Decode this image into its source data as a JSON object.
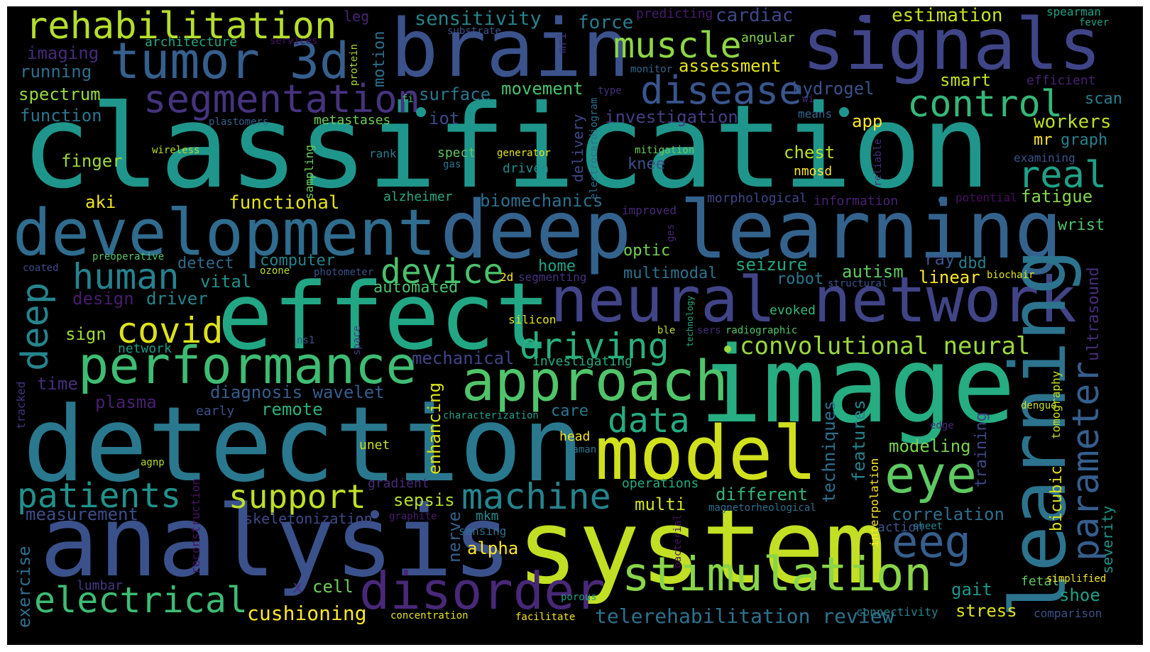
{
  "words": [
    {
      "t": "classification",
      "c": "#1f968b"
    },
    {
      "t": "detection",
      "c": "#2a788e"
    },
    {
      "t": "system",
      "c": "#c2df23"
    },
    {
      "t": "analysis",
      "c": "#3b518b"
    },
    {
      "t": "image",
      "c": "#26ad81"
    },
    {
      "t": "effect",
      "c": "#22a785"
    },
    {
      "t": "deep learning",
      "c": "#33638d"
    },
    {
      "t": "development",
      "c": "#2f6c8e"
    },
    {
      "t": "brain",
      "c": "#3b528b"
    },
    {
      "t": "signals",
      "c": "#404588"
    },
    {
      "t": "neural network",
      "c": "#414487"
    },
    {
      "t": "model",
      "c": "#d0e11c"
    },
    {
      "t": "performance",
      "c": "#3fbc73"
    },
    {
      "t": "approach",
      "c": "#50c46a"
    },
    {
      "t": "stimulation",
      "c": "#89d548"
    },
    {
      "t": "disorder",
      "c": "#482878"
    },
    {
      "t": "learning",
      "c": "#2c738e"
    },
    {
      "t": "tumor 3d",
      "c": "#355f8d"
    },
    {
      "t": "rehabilitation",
      "c": "#b5de2b"
    },
    {
      "t": "segmentation",
      "c": "#46337e"
    },
    {
      "t": "muscle",
      "c": "#8ed645"
    },
    {
      "t": "disease",
      "c": "#39558c"
    },
    {
      "t": "control",
      "c": "#35b779"
    },
    {
      "t": "real",
      "c": "#1fa088"
    },
    {
      "t": "human",
      "c": "#26828e"
    },
    {
      "t": "covid",
      "c": "#dde318"
    },
    {
      "t": "device",
      "c": "#4ac16d"
    },
    {
      "t": "driving",
      "c": "#29af7f"
    },
    {
      "t": "data",
      "c": "#25ab82"
    },
    {
      "t": "eye",
      "c": "#5ec962"
    },
    {
      "t": "eeg",
      "c": "#355e8d"
    },
    {
      "t": "machine",
      "c": "#25848e"
    },
    {
      "t": "support",
      "c": "#bddf26"
    },
    {
      "t": "patients",
      "c": "#21918c"
    },
    {
      "t": "electrical",
      "c": "#3dbc74"
    },
    {
      "t": "deep",
      "c": "#25858e"
    },
    {
      "t": "parameter",
      "c": "#355e8d"
    },
    {
      "t": "convolutional neural",
      "c": "#9bd93c"
    },
    {
      "t": "cushioning",
      "c": "#fde725"
    },
    {
      "t": "telerehabilitation review",
      "c": "#2c728e"
    },
    {
      "t": "sensitivity",
      "c": "#25848e"
    },
    {
      "t": "force",
      "c": "#287c8e"
    },
    {
      "t": "cardiac",
      "c": "#3f4788"
    },
    {
      "t": "estimation",
      "c": "#c8e020"
    },
    {
      "t": "spearman",
      "c": "#1fa187"
    },
    {
      "t": "fever",
      "c": "#1f9e89"
    },
    {
      "t": "leg",
      "c": "#482576"
    },
    {
      "t": "predicting",
      "c": "#481b6d"
    },
    {
      "t": "angular",
      "c": "#84d44b"
    },
    {
      "t": "architecture",
      "c": "#22a785"
    },
    {
      "t": "services",
      "c": "#471164"
    },
    {
      "t": "substrate",
      "c": "#3b528b"
    },
    {
      "t": "imaging",
      "c": "#472a7a"
    },
    {
      "t": "running",
      "c": "#2d708e"
    },
    {
      "t": "spectrum",
      "c": "#98d83e"
    },
    {
      "t": "function",
      "c": "#2a768e"
    },
    {
      "t": "protein",
      "c": "#a8db34"
    },
    {
      "t": "motion",
      "c": "#2c718e"
    },
    {
      "t": "mri",
      "c": "#453882"
    },
    {
      "t": "monitor",
      "c": "#31668e"
    },
    {
      "t": "assessment",
      "c": "#e5e419"
    },
    {
      "t": "smart",
      "c": "#c2df23"
    },
    {
      "t": "efficient",
      "c": "#482071"
    },
    {
      "t": "scan",
      "c": "#287d8e"
    },
    {
      "t": "movement",
      "c": "#48c16e"
    },
    {
      "t": "surface",
      "c": "#2a788e"
    },
    {
      "t": "hydrogel",
      "c": "#3b528b"
    },
    {
      "t": "type",
      "c": "#46327e"
    },
    {
      "t": "fi",
      "c": "#3dbc74"
    },
    {
      "t": "plastomers",
      "c": "#34618d"
    },
    {
      "t": "metastases",
      "c": "#6ece58"
    },
    {
      "t": "iot",
      "c": "#3e4989"
    },
    {
      "t": "investigation",
      "c": "#433e85"
    },
    {
      "t": "wi",
      "c": "#472c7a"
    },
    {
      "t": "means",
      "c": "#31688e"
    },
    {
      "t": "app",
      "c": "#fde725"
    },
    {
      "t": "workers",
      "c": "#bddf26"
    },
    {
      "t": "mr",
      "c": "#fde725"
    },
    {
      "t": "graph",
      "c": "#26828e"
    },
    {
      "t": "examining",
      "c": "#3a538b"
    },
    {
      "t": "finger",
      "c": "#9bd93c"
    },
    {
      "t": "wireless",
      "c": "#b5de2b"
    },
    {
      "t": "sampling",
      "c": "#6ece58"
    },
    {
      "t": "rank",
      "c": "#287c8e"
    },
    {
      "t": "spect",
      "c": "#5ec962"
    },
    {
      "t": "gas",
      "c": "#2c728e"
    },
    {
      "t": "generator",
      "c": "#e5e419"
    },
    {
      "t": "driven",
      "c": "#228c8d"
    },
    {
      "t": "delivery",
      "c": "#3f4889"
    },
    {
      "t": "electrocardiogram",
      "c": "#2e6f8e"
    },
    {
      "t": "mitigation",
      "c": "#6ccd5a"
    },
    {
      "t": "knee",
      "c": "#3b528b"
    },
    {
      "t": "chest",
      "c": "#bade28"
    },
    {
      "t": "nmosd",
      "c": "#fde725"
    },
    {
      "t": "reliable",
      "c": "#46307e"
    },
    {
      "t": "fatigue",
      "c": "#86d549"
    },
    {
      "t": "aki",
      "c": "#f1e51d"
    },
    {
      "t": "functional",
      "c": "#e2e418"
    },
    {
      "t": "alzheimer",
      "c": "#25ab82"
    },
    {
      "t": "biomechanics",
      "c": "#2d708e"
    },
    {
      "t": "morphological",
      "c": "#404688"
    },
    {
      "t": "information",
      "c": "#482173"
    },
    {
      "t": "potential",
      "c": "#470e61"
    },
    {
      "t": "improved",
      "c": "#482878"
    },
    {
      "t": "ges",
      "c": "#482475"
    },
    {
      "t": "wrist",
      "c": "#4ec36b"
    },
    {
      "t": "preoperative",
      "c": "#52c569"
    },
    {
      "t": "coated",
      "c": "#3e4c8a"
    },
    {
      "t": "ozone",
      "c": "#b8de29"
    },
    {
      "t": "photometer",
      "c": "#3b528b"
    },
    {
      "t": "detect",
      "c": "#2f6c8e"
    },
    {
      "t": "computer",
      "c": "#25838e"
    },
    {
      "t": "optic",
      "c": "#79d151"
    },
    {
      "t": "multimodal",
      "c": "#2c738e"
    },
    {
      "t": "seizure",
      "c": "#22a884"
    },
    {
      "t": "home",
      "c": "#20a386"
    },
    {
      "t": "2d",
      "c": "#fde725"
    },
    {
      "t": "segmenting",
      "c": "#46317e"
    },
    {
      "t": "ray",
      "c": "#3b528b"
    },
    {
      "t": "dbd",
      "c": "#287c8e"
    },
    {
      "t": "autism",
      "c": "#5ec962"
    },
    {
      "t": "linear",
      "c": "#fde725"
    },
    {
      "t": "biochair",
      "c": "#e2e418"
    },
    {
      "t": "structural",
      "c": "#3a548c"
    },
    {
      "t": "robot",
      "c": "#2a788e"
    },
    {
      "t": "ultrasound",
      "c": "#472d7b"
    },
    {
      "t": "vital",
      "c": "#21908d"
    },
    {
      "t": "design",
      "c": "#481c6e"
    },
    {
      "t": "driver",
      "c": "#24868e"
    },
    {
      "t": "automated",
      "c": "#4ac16d"
    },
    {
      "t": "evoked",
      "c": "#35b779"
    },
    {
      "t": "sign",
      "c": "#a2da37"
    },
    {
      "t": "silicon",
      "c": "#e2e418"
    },
    {
      "t": "technology",
      "c": "#25ab82"
    },
    {
      "t": "ble",
      "c": "#c0df25"
    },
    {
      "t": "sers",
      "c": "#482979"
    },
    {
      "t": "radiographic",
      "c": "#52c569"
    },
    {
      "t": "network",
      "c": "#1e9b8a"
    },
    {
      "t": "ns1",
      "c": "#3b528b"
    },
    {
      "t": "space",
      "c": "#443a83"
    },
    {
      "t": "mechanical",
      "c": "#414487"
    },
    {
      "t": "investigating",
      "c": "#25ab82"
    },
    {
      "t": "enhancing",
      "c": "#d8e219"
    },
    {
      "t": "tomography",
      "c": "#c5e021"
    },
    {
      "t": "time",
      "c": "#472d7b"
    },
    {
      "t": "plasma",
      "c": "#481f70"
    },
    {
      "t": "diagnosis wavelet",
      "c": "#365d8d"
    },
    {
      "t": "remote",
      "c": "#29af7f"
    },
    {
      "t": "early",
      "c": "#3b528b"
    },
    {
      "t": "tracked",
      "c": "#46337e"
    },
    {
      "t": "characterization",
      "c": "#1f9e89"
    },
    {
      "t": "care",
      "c": "#2a788e"
    },
    {
      "t": "dengue",
      "c": "#c5e021"
    },
    {
      "t": "techniques",
      "c": "#2d708e"
    },
    {
      "t": "features",
      "c": "#25848e"
    },
    {
      "t": "bicubic",
      "c": "#dde318"
    },
    {
      "t": "severity",
      "c": "#1f958b"
    },
    {
      "t": "training",
      "c": "#3f4788"
    },
    {
      "t": "head",
      "c": "#f8e621"
    },
    {
      "t": "raman",
      "c": "#2a788e"
    },
    {
      "t": "edge",
      "c": "#482878"
    },
    {
      "t": "interpolation",
      "c": "#fde725"
    },
    {
      "t": "modeling",
      "c": "#7ad151"
    },
    {
      "t": "agnp",
      "c": "#b5de2b"
    },
    {
      "t": "unet",
      "c": "#c8e020"
    },
    {
      "t": "gradient",
      "c": "#472a7a"
    },
    {
      "t": "operations",
      "c": "#25ab82"
    },
    {
      "t": "different",
      "c": "#32b67a"
    },
    {
      "t": "reconstruction",
      "c": "#471365"
    },
    {
      "t": "sepsis",
      "c": "#b5de2b"
    },
    {
      "t": "multi",
      "c": "#d2e21b"
    },
    {
      "t": "magnetorheological",
      "c": "#2d708e"
    },
    {
      "t": "correlation",
      "c": "#2e6e8e"
    },
    {
      "t": "measurement",
      "c": "#3d4e8a"
    },
    {
      "t": "skeletonization",
      "c": "#3f4889"
    },
    {
      "t": "graphite",
      "c": "#481b6d"
    },
    {
      "t": "mkm",
      "c": "#228b8d"
    },
    {
      "t": "sensing",
      "c": "#2c718e"
    },
    {
      "t": "bacterial",
      "c": "#471164"
    },
    {
      "t": "action",
      "c": "#3a548c"
    },
    {
      "t": "sheet",
      "c": "#27808e"
    },
    {
      "t": "alpha",
      "c": "#fde725"
    },
    {
      "t": "nerve",
      "c": "#355f8d"
    },
    {
      "t": "exercise",
      "c": "#2d708e"
    },
    {
      "t": "lumbar",
      "c": "#443983"
    },
    {
      "t": "x",
      "c": "#46307e"
    },
    {
      "t": "cell",
      "c": "#6ece58"
    },
    {
      "t": "porous",
      "c": "#1fa088"
    },
    {
      "t": "gait",
      "c": "#1f978b"
    },
    {
      "t": "stress",
      "c": "#dde318"
    },
    {
      "t": "fetal",
      "c": "#5ec962"
    },
    {
      "t": "shoe",
      "c": "#1fa088"
    },
    {
      "t": "simplified",
      "c": "#f4e61e"
    },
    {
      "t": "connectivity",
      "c": "#26828e"
    },
    {
      "t": "comparison",
      "c": "#3b528b"
    },
    {
      "t": "concentration",
      "c": "#e5e419"
    },
    {
      "t": "facilitate",
      "c": "#f6e620"
    }
  ]
}
